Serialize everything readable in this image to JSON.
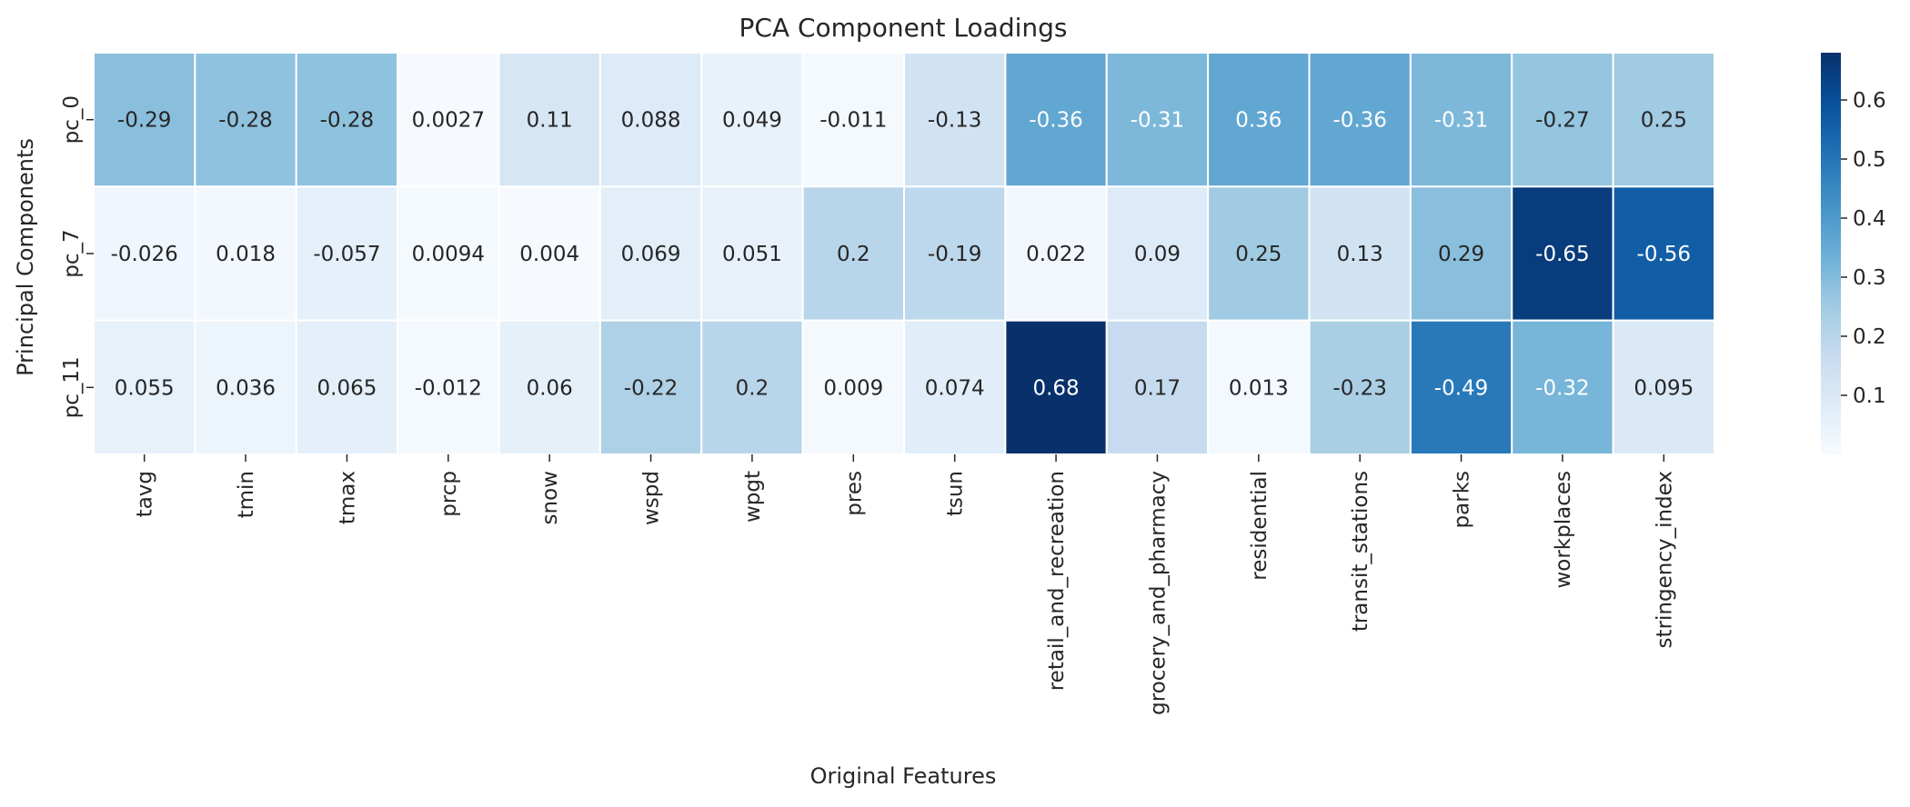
{
  "chart_data": {
    "type": "heatmap",
    "title": "PCA Component Loadings",
    "xlabel": "Original Features",
    "ylabel": "Principal Components",
    "colormap": "Blues",
    "color_range": [
      0.0,
      0.68
    ],
    "colorbar_ticks": [
      "0.1",
      "0.2",
      "0.3",
      "0.4",
      "0.5",
      "0.6"
    ],
    "columns": [
      "tavg",
      "tmin",
      "tmax",
      "prcp",
      "snow",
      "wspd",
      "wpgt",
      "pres",
      "tsun",
      "retail_and_recreation",
      "grocery_and_pharmacy",
      "residential",
      "transit_stations",
      "parks",
      "workplaces",
      "stringency_index"
    ],
    "rows": [
      "pc_0",
      "pc_7",
      "pc_11"
    ],
    "values": [
      [
        -0.29,
        -0.28,
        -0.28,
        0.0027,
        0.11,
        0.088,
        0.049,
        -0.011,
        -0.13,
        -0.36,
        -0.31,
        0.36,
        -0.36,
        -0.31,
        -0.27,
        0.25
      ],
      [
        -0.026,
        0.018,
        -0.057,
        0.0094,
        0.004,
        0.069,
        0.051,
        0.2,
        -0.19,
        0.022,
        0.09,
        0.25,
        0.13,
        0.29,
        -0.65,
        -0.56
      ],
      [
        0.055,
        0.036,
        0.065,
        -0.012,
        0.06,
        -0.22,
        0.2,
        0.009,
        0.074,
        0.68,
        0.17,
        0.013,
        -0.23,
        -0.49,
        -0.32,
        0.095
      ]
    ],
    "labels": [
      [
        "-0.29",
        "-0.28",
        "-0.28",
        "0.0027",
        "0.11",
        "0.088",
        "0.049",
        "-0.011",
        "-0.13",
        "-0.36",
        "-0.31",
        "0.36",
        "-0.36",
        "-0.31",
        "-0.27",
        "0.25"
      ],
      [
        "-0.026",
        "0.018",
        "-0.057",
        "0.0094",
        "0.004",
        "0.069",
        "0.051",
        "0.2",
        "-0.19",
        "0.022",
        "0.09",
        "0.25",
        "0.13",
        "0.29",
        "-0.65",
        "-0.56"
      ],
      [
        "0.055",
        "0.036",
        "0.065",
        "-0.012",
        "0.06",
        "-0.22",
        "0.2",
        "0.009",
        "0.074",
        "0.68",
        "0.17",
        "0.013",
        "-0.23",
        "-0.49",
        "-0.32",
        "0.095"
      ]
    ]
  }
}
